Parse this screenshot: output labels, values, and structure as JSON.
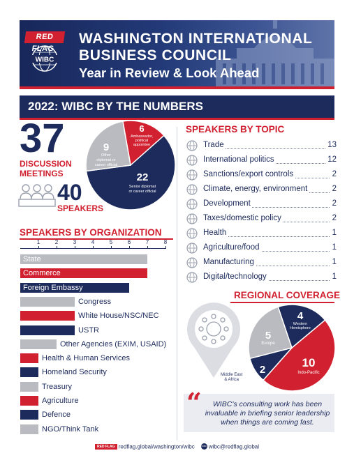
{
  "header": {
    "badge": "RED FLAG",
    "logo_text": "WIBC",
    "title_line1": "WASHINGTON INTERNATIONAL",
    "title_line2": "BUSINESS COUNCIL",
    "subtitle": "Year in Review & Look Ahead"
  },
  "banner": {
    "title": "2022: WIBC BY THE NUMBERS"
  },
  "stats": {
    "meetings_count": "37",
    "meetings_label_line1": "DISCUSSION",
    "meetings_label_line2": "MEETINGS",
    "speakers_count": "40",
    "speakers_label": "SPEAKERS"
  },
  "speaker_pie": {
    "slices": [
      {
        "value": 22,
        "label": "22",
        "desc_line1": "Senior diplomat",
        "desc_line2": "or career official",
        "color": "#1d2b5c"
      },
      {
        "value": 9,
        "label": "9",
        "desc_line1": "Other",
        "desc_line2": "diplomat or",
        "desc_line3": "career official",
        "color": "#b9bbc1"
      },
      {
        "value": 6,
        "label": "6",
        "desc_line1": "Ambassador,",
        "desc_line2": "political",
        "desc_line3": "appointee",
        "color": "#d1202f"
      }
    ]
  },
  "topics": {
    "title": "SPEAKERS BY TOPIC",
    "items": [
      {
        "name": "Trade",
        "value": "13",
        "icon": "globe-icon"
      },
      {
        "name": "International politics",
        "value": "12",
        "icon": "handshake-icon"
      },
      {
        "name": "Sanctions/export controls",
        "value": "2",
        "icon": "gavel-icon"
      },
      {
        "name": "Climate, energy, environment",
        "value": "2",
        "icon": "leaf-icon"
      },
      {
        "name": "Development",
        "value": "2",
        "icon": "worker-icon"
      },
      {
        "name": "Taxes/domestic policy",
        "value": "2",
        "icon": "document-icon"
      },
      {
        "name": "Health",
        "value": "1",
        "icon": "mask-icon"
      },
      {
        "name": "Agriculture/food",
        "value": "1",
        "icon": "tractor-icon"
      },
      {
        "name": "Manufacturing",
        "value": "1",
        "icon": "gears-icon"
      },
      {
        "name": "Digital/technology",
        "value": "1",
        "icon": "laptop-icon"
      }
    ]
  },
  "chart_data": {
    "type": "bar",
    "title": "SPEAKERS BY ORGANIZATION",
    "xlim": [
      0,
      8
    ],
    "ticks": [
      "1",
      "2",
      "3",
      "4",
      "5",
      "6",
      "7",
      "8"
    ],
    "categories": [
      "State",
      "Commerce",
      "Foreign Embassy",
      "Congress",
      "White House/NSC/NEC",
      "USTR",
      "Other Agencies (EXIM, USAID)",
      "Health & Human Services",
      "Homeland Security",
      "Treasury",
      "Agriculture",
      "Defence",
      "NGO/Think Tank"
    ],
    "values": [
      7,
      7,
      6,
      3,
      3,
      3,
      2,
      1,
      1,
      1,
      1,
      1,
      1
    ],
    "colors": [
      "#b9bbc1",
      "#d1202f",
      "#1d2b5c",
      "#b9bbc1",
      "#d1202f",
      "#1d2b5c",
      "#b9bbc1",
      "#d1202f",
      "#1d2b5c",
      "#b9bbc1",
      "#d1202f",
      "#1d2b5c",
      "#b9bbc1"
    ]
  },
  "regional": {
    "title": "REGIONAL COVERAGE",
    "slices": [
      {
        "value": 10,
        "label": "10",
        "region": "Indo-Pacific",
        "color": "#d1202f"
      },
      {
        "value": 2,
        "label": "2",
        "region_line1": "Middle East",
        "region_line2": "& Africa",
        "color": "#1d2b5c"
      },
      {
        "value": 5,
        "label": "5",
        "region": "Europe",
        "color": "#b9bbc1"
      },
      {
        "value": 4,
        "label": "4",
        "region_line1": "Western",
        "region_line2": "Hemisphere",
        "color": "#1d2b5c"
      }
    ]
  },
  "quote": {
    "line1": "WIBC’s consulting work has been",
    "line2": "invaluable in briefing senior leadership",
    "line3": "when things are coming fast."
  },
  "footer": {
    "badge": "RED FLAG",
    "website": "redflag.global/washington/wibc",
    "logo_text": "WIBC",
    "email": "wibc@redflag.global"
  }
}
